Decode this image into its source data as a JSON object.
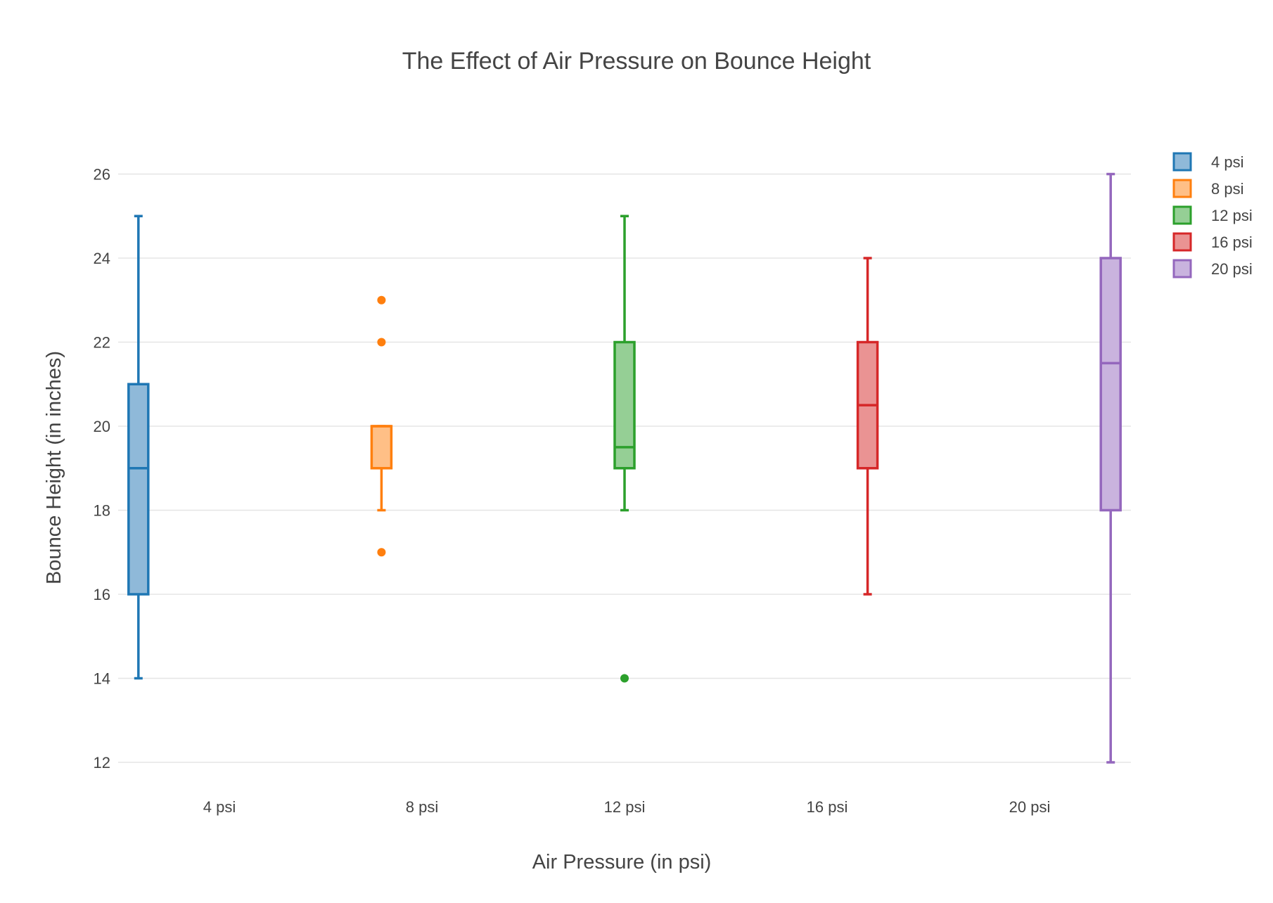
{
  "chart_data": {
    "type": "box",
    "title": "The Effect of Air Pressure on Bounce Height",
    "xlabel": "Air Pressure (in psi)",
    "ylabel": "Bounce Height (in inches)",
    "ylim": [
      11.5,
      26.9
    ],
    "yticks": [
      12,
      14,
      16,
      18,
      20,
      22,
      24,
      26
    ],
    "grid": true,
    "legend_position": "top-right",
    "categories": [
      "4 psi",
      "8 psi",
      "12 psi",
      "16 psi",
      "20 psi"
    ],
    "series": [
      {
        "name": "4 psi",
        "category": "4 psi",
        "color": "#1f77b4",
        "fill": "#8fb9d9",
        "min": 14,
        "q1": 16,
        "median": 19,
        "q3": 21,
        "max": 25,
        "outliers": []
      },
      {
        "name": "8 psi",
        "category": "8 psi",
        "color": "#ff7f0e",
        "fill": "#ffbf86",
        "min": 18,
        "q1": 19,
        "median": 20,
        "q3": 20,
        "max": 20,
        "outliers": [
          22,
          23,
          17
        ]
      },
      {
        "name": "12 psi",
        "category": "12 psi",
        "color": "#2ca02c",
        "fill": "#95cf95",
        "min": 18,
        "q1": 19,
        "median": 19.5,
        "q3": 22,
        "max": 25,
        "outliers": [
          14
        ]
      },
      {
        "name": "16 psi",
        "category": "16 psi",
        "color": "#d62728",
        "fill": "#ea9393",
        "min": 16,
        "q1": 19,
        "median": 20.5,
        "q3": 22,
        "max": 24,
        "outliers": []
      },
      {
        "name": "20 psi",
        "category": "20 psi",
        "color": "#9467bd",
        "fill": "#c9b3de",
        "min": 12,
        "q1": 18,
        "median": 21.5,
        "q3": 24,
        "max": 26,
        "outliers": []
      }
    ]
  }
}
